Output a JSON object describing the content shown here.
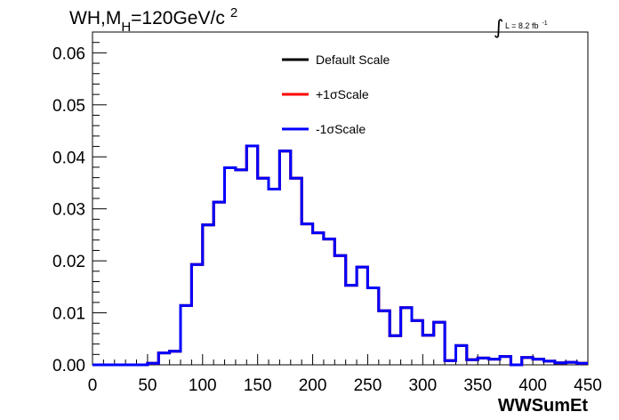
{
  "chart_data": {
    "type": "line",
    "title": {
      "prefix": "WH,M",
      "subscript": "H",
      "middle": "=120GeV/c",
      "superscript": "2"
    },
    "luminosity": {
      "symbol": "∫",
      "text": "L = 8.2 fb",
      "superscript": "-1"
    },
    "xlabel": "WWSumEt",
    "ylabel": "",
    "xlim": [
      0,
      450
    ],
    "ylim": [
      0,
      0.064
    ],
    "x_ticks": [
      "0",
      "50",
      "100",
      "150",
      "200",
      "250",
      "300",
      "350",
      "400",
      "450"
    ],
    "y_ticks": [
      "0.00",
      "0.01",
      "0.02",
      "0.03",
      "0.04",
      "0.05",
      "0.06"
    ],
    "grid": false,
    "legend_position": "top-center",
    "bin_edges": [
      0,
      10,
      20,
      30,
      40,
      50,
      60,
      70,
      80,
      90,
      100,
      110,
      120,
      130,
      140,
      150,
      160,
      170,
      180,
      190,
      200,
      210,
      220,
      230,
      240,
      250,
      260,
      270,
      280,
      290,
      300,
      310,
      320,
      330,
      340,
      350,
      360,
      370,
      380,
      390,
      400,
      410,
      420,
      430,
      440,
      450
    ],
    "series": [
      {
        "name": "Default Scale",
        "color": "#000000",
        "values": [
          0,
          0,
          0,
          0,
          0,
          0.0003,
          0.0023,
          0.0026,
          0.0114,
          0.0193,
          0.0269,
          0.0313,
          0.0379,
          0.0375,
          0.0421,
          0.0359,
          0.0338,
          0.0411,
          0.0359,
          0.0271,
          0.0254,
          0.0242,
          0.021,
          0.0153,
          0.0188,
          0.0148,
          0.0104,
          0.0056,
          0.011,
          0.0085,
          0.0057,
          0.0082,
          0.0008,
          0.0037,
          0.001,
          0.0013,
          0.0011,
          0.0016,
          0.0,
          0.0014,
          0.0011,
          0.0007,
          0.0004,
          0.0005,
          0.0003
        ]
      },
      {
        "name": "+1σScale",
        "color": "#ff0000",
        "values": [
          0,
          0,
          0,
          0,
          0,
          0.0003,
          0.0023,
          0.0026,
          0.0114,
          0.0193,
          0.0269,
          0.0313,
          0.0379,
          0.0375,
          0.0421,
          0.0359,
          0.0338,
          0.0411,
          0.0359,
          0.0271,
          0.0254,
          0.0242,
          0.021,
          0.0153,
          0.0188,
          0.0148,
          0.0104,
          0.0056,
          0.011,
          0.0085,
          0.0057,
          0.0082,
          0.0008,
          0.0037,
          0.001,
          0.0013,
          0.0011,
          0.0016,
          0.0,
          0.0014,
          0.0011,
          0.0007,
          0.0004,
          0.0005,
          0.0003
        ]
      },
      {
        "name": "-1σScale",
        "color": "#0000ff",
        "values": [
          0,
          0,
          0,
          0,
          0,
          0.0003,
          0.0023,
          0.0026,
          0.0114,
          0.0193,
          0.0269,
          0.0313,
          0.0379,
          0.0375,
          0.0421,
          0.0359,
          0.0338,
          0.0411,
          0.0359,
          0.0271,
          0.0254,
          0.0242,
          0.021,
          0.0153,
          0.0188,
          0.0148,
          0.0104,
          0.0056,
          0.011,
          0.0085,
          0.0057,
          0.0082,
          0.0008,
          0.0037,
          0.001,
          0.0013,
          0.0011,
          0.0016,
          0.0,
          0.0014,
          0.0011,
          0.0007,
          0.0004,
          0.0005,
          0.0003
        ]
      }
    ]
  }
}
